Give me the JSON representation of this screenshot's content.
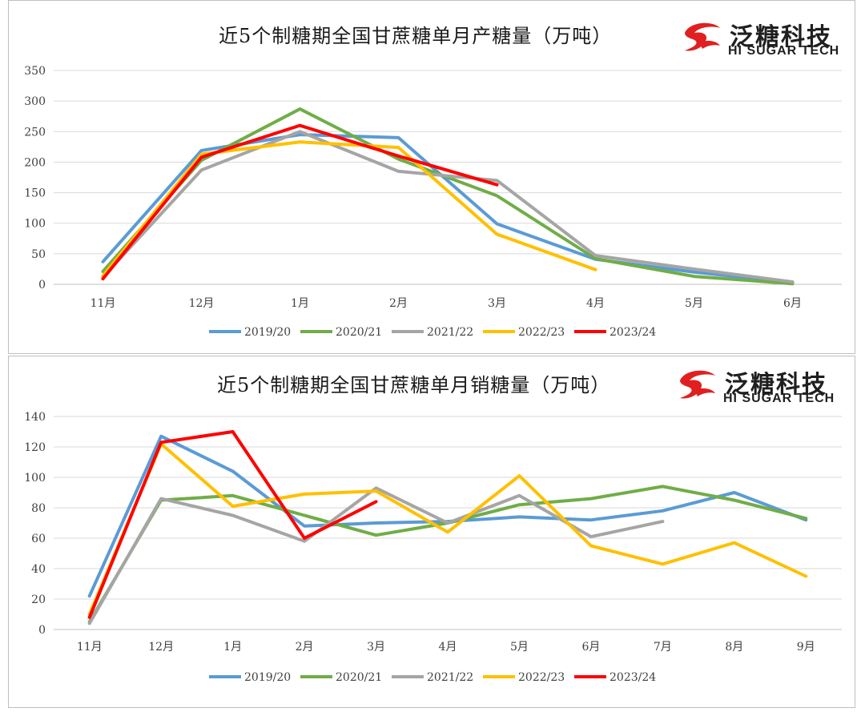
{
  "brand": {
    "name_cn": "泛糖科技",
    "name_en": "HI SUGAR TECH",
    "color": "#e02020"
  },
  "series_colors": {
    "2019/20": "#5b9bd5",
    "2020/21": "#70ad47",
    "2021/22": "#a5a5a5",
    "2022/23": "#ffc000",
    "2023/24": "#ff0000"
  },
  "chart_data": [
    {
      "type": "line",
      "title": "近5个制糖期全国甘蔗糖单月产糖量（万吨）",
      "xlabel": "",
      "ylabel": "",
      "categories": [
        "11月",
        "12月",
        "1月",
        "2月",
        "3月",
        "4月",
        "5月",
        "6月"
      ],
      "ylim": [
        0,
        350
      ],
      "yticks": [
        0,
        50,
        100,
        150,
        200,
        250,
        300,
        350
      ],
      "grid": true,
      "legend": "bottom",
      "series": [
        {
          "name": "2019/20",
          "values": [
            37,
            219,
            245,
            240,
            99,
            41,
            20,
            3
          ]
        },
        {
          "name": "2020/21",
          "values": [
            21,
            203,
            287,
            205,
            145,
            42,
            13,
            1
          ]
        },
        {
          "name": "2021/22",
          "values": [
            12,
            187,
            250,
            185,
            170,
            47,
            25,
            4
          ]
        },
        {
          "name": "2022/23",
          "values": [
            14,
            213,
            233,
            224,
            82,
            24,
            null,
            null
          ]
        },
        {
          "name": "2023/24",
          "values": [
            9,
            208,
            260,
            210,
            163,
            null,
            null,
            null
          ]
        }
      ]
    },
    {
      "type": "line",
      "title": "近5个制糖期全国甘蔗糖单月销糖量（万吨）",
      "xlabel": "",
      "ylabel": "",
      "categories": [
        "11月",
        "12月",
        "1月",
        "2月",
        "3月",
        "4月",
        "5月",
        "6月",
        "7月",
        "8月",
        "9月"
      ],
      "ylim": [
        0,
        140
      ],
      "yticks": [
        0,
        20,
        40,
        60,
        80,
        100,
        120,
        140
      ],
      "grid": true,
      "legend": "bottom",
      "series": [
        {
          "name": "2019/20",
          "values": [
            22,
            127,
            104,
            68,
            70,
            71,
            74,
            72,
            78,
            90,
            72
          ]
        },
        {
          "name": "2020/21",
          "values": [
            5,
            85,
            88,
            75,
            62,
            70,
            82,
            86,
            94,
            85,
            73
          ]
        },
        {
          "name": "2021/22",
          "values": [
            4,
            86,
            75,
            58,
            93,
            70,
            88,
            61,
            71,
            null,
            null
          ]
        },
        {
          "name": "2022/23",
          "values": [
            10,
            122,
            81,
            89,
            91,
            64,
            101,
            55,
            43,
            57,
            35
          ]
        },
        {
          "name": "2023/24",
          "values": [
            8,
            123,
            130,
            60,
            84,
            null,
            null,
            null,
            null,
            null,
            null
          ]
        }
      ]
    }
  ]
}
